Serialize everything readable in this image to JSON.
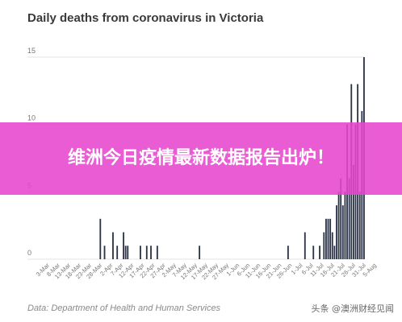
{
  "chart_data": {
    "type": "bar",
    "title": "Daily deaths from coronavirus in Victoria",
    "source": "Data: Department of Health and Human Services",
    "ylim": [
      0,
      15
    ],
    "yticks": [
      0,
      5,
      10,
      15
    ],
    "grid": true,
    "color": "#2b3347",
    "x_start": "3-Mar",
    "x_tick_labels": [
      "3-Mar",
      "8-Mar",
      "13-Mar",
      "18-Mar",
      "23-Mar",
      "28-Mar",
      "2-Apr",
      "7-Apr",
      "12-Apr",
      "17-Apr",
      "22-Apr",
      "27-Apr",
      "2-May",
      "7-May",
      "12-May",
      "17-May",
      "22-May",
      "27-May",
      "1-Jun",
      "6-Jun",
      "11-Jun",
      "16-Jun",
      "21-Jun",
      "26-Jun",
      "1-Jul",
      "6-Jul",
      "11-Jul",
      "16-Jul",
      "21-Jul",
      "26-Jul",
      "31-Jul",
      "5-Aug"
    ],
    "values": [
      0,
      0,
      0,
      0,
      0,
      0,
      0,
      0,
      0,
      0,
      0,
      0,
      0,
      0,
      0,
      0,
      0,
      0,
      0,
      0,
      0,
      0,
      0,
      0,
      3,
      0,
      1,
      0,
      0,
      0,
      2,
      0,
      1,
      0,
      0,
      2,
      1,
      1,
      0,
      0,
      0,
      0,
      0,
      1,
      0,
      0,
      1,
      0,
      1,
      0,
      0,
      1,
      0,
      0,
      0,
      0,
      0,
      0,
      0,
      0,
      0,
      0,
      0,
      0,
      0,
      0,
      0,
      0,
      0,
      0,
      0,
      1,
      0,
      0,
      0,
      0,
      0,
      0,
      0,
      0,
      0,
      0,
      0,
      0,
      0,
      0,
      0,
      0,
      0,
      0,
      0,
      0,
      0,
      0,
      0,
      0,
      0,
      0,
      0,
      0,
      0,
      0,
      0,
      0,
      0,
      0,
      0,
      0,
      0,
      0,
      0,
      0,
      0,
      1,
      0,
      0,
      0,
      0,
      0,
      0,
      0,
      2,
      0,
      0,
      0,
      1,
      0,
      0,
      1,
      0,
      2,
      3,
      3,
      3,
      2,
      1,
      4,
      5,
      6,
      4,
      5,
      10,
      6,
      13,
      7,
      10,
      13,
      5,
      11,
      15
    ]
  },
  "banner": {
    "text": "维洲今日疫情最新数据报告出炉！"
  },
  "watermark": "头条 @澳洲财经见闻"
}
